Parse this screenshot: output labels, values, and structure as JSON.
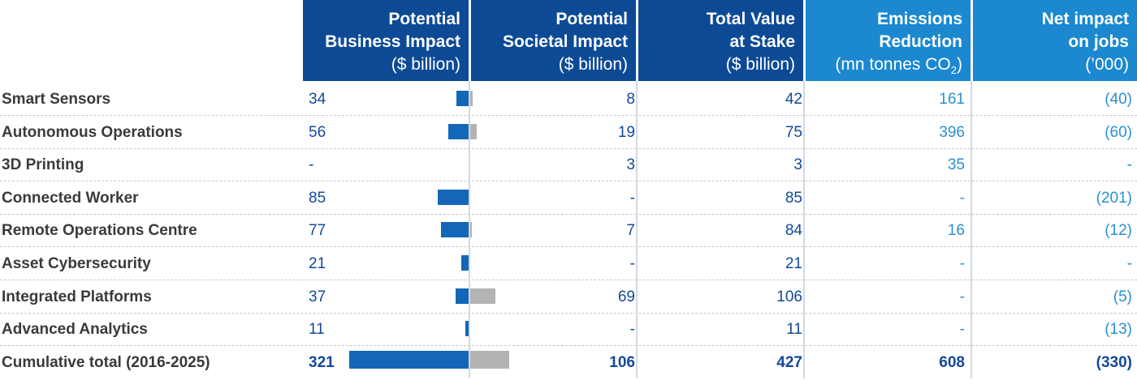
{
  "headers": {
    "business": {
      "line1": "Potential",
      "line2": "Business Impact",
      "line3": "($ billion)"
    },
    "societal": {
      "line1": "Potential",
      "line2": "Societal Impact",
      "line3": "($ billion)"
    },
    "total": {
      "line1": "Total Value",
      "line2": "at Stake",
      "line3": "($ billion)"
    },
    "emissions": {
      "line1": "Emissions",
      "line2": "Reduction",
      "line3": "(mn tonnes CO",
      "sub": "2",
      "close": ")"
    },
    "jobs": {
      "line1": "Net impact",
      "line2": "on jobs",
      "line3": "(’000)"
    }
  },
  "colors": {
    "header_dark": "#0d4a96",
    "header_light": "#1b88cf",
    "bar_business": "#1466b8",
    "bar_societal": "#b3b3b3"
  },
  "chart_data": {
    "type": "table",
    "columns": [
      "Potential Business Impact ($ billion)",
      "Potential Societal Impact ($ billion)",
      "Total Value at Stake ($ billion)",
      "Emissions Reduction (mn tonnes CO2)",
      "Net impact on jobs ('000)"
    ],
    "rows": [
      {
        "label": "Smart Sensors",
        "business": "34",
        "business_v": 34,
        "societal": "8",
        "societal_v": 8,
        "total": "42",
        "emissions": "161",
        "jobs": "(40)"
      },
      {
        "label": "Autonomous Operations",
        "business": "56",
        "business_v": 56,
        "societal": "19",
        "societal_v": 19,
        "total": "75",
        "emissions": "396",
        "jobs": "(60)"
      },
      {
        "label": "3D Printing",
        "business": "-",
        "business_v": 0,
        "societal": "3",
        "societal_v": 3,
        "total": "3",
        "emissions": "35",
        "jobs": "-"
      },
      {
        "label": "Connected Worker",
        "business": "85",
        "business_v": 85,
        "societal": "-",
        "societal_v": 0,
        "total": "85",
        "emissions": "-",
        "jobs": "(201)"
      },
      {
        "label": "Remote Operations Centre",
        "business": "77",
        "business_v": 77,
        "societal": "7",
        "societal_v": 7,
        "total": "84",
        "emissions": "16",
        "jobs": "(12)"
      },
      {
        "label": "Asset Cybersecurity",
        "business": "21",
        "business_v": 21,
        "societal": "-",
        "societal_v": 0,
        "total": "21",
        "emissions": "-",
        "jobs": "-"
      },
      {
        "label": "Integrated Platforms",
        "business": "37",
        "business_v": 37,
        "societal": "69",
        "societal_v": 69,
        "total": "106",
        "emissions": "-",
        "jobs": "(5)"
      },
      {
        "label": "Advanced Analytics",
        "business": "11",
        "business_v": 11,
        "societal": "-",
        "societal_v": 0,
        "total": "11",
        "emissions": "-",
        "jobs": "(13)"
      },
      {
        "label": "Cumulative total (2016-2025)",
        "business": "321",
        "business_v": 321,
        "societal": "106",
        "societal_v": 106,
        "total": "427",
        "emissions": "608",
        "jobs": "(330)"
      }
    ]
  }
}
